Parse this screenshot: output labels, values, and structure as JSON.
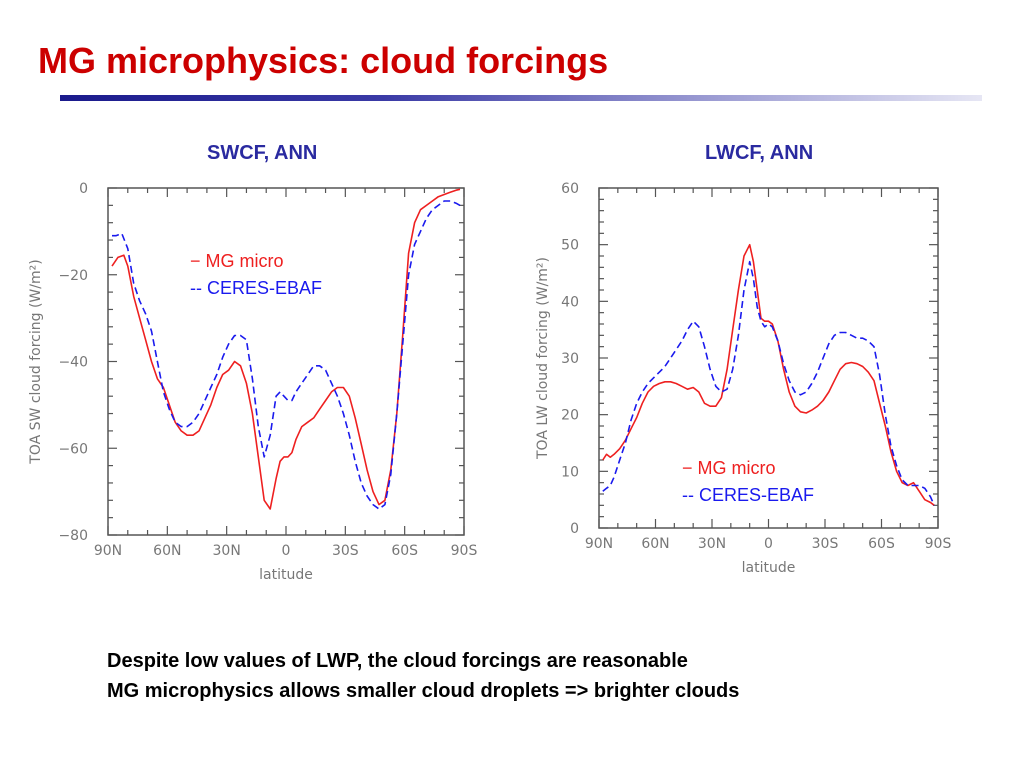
{
  "slide": {
    "title": "MG microphysics: cloud forcings",
    "notes": [
      "Despite low values of LWP, the cloud forcings are reasonable",
      "MG microphysics allows smaller cloud droplets => brighter clouds"
    ]
  },
  "colors": {
    "title": "#cc0000",
    "chart_title": "#2a2aa0",
    "mg": "#ee2020",
    "ceres": "#1a1aee",
    "axis": "#777777"
  },
  "chart_data": [
    {
      "type": "line",
      "title": "SWCF, ANN",
      "xlabel": "latitude",
      "ylabel": "TOA SW cloud forcing (W/m²)",
      "x_ticks": [
        90,
        60,
        30,
        0,
        -30,
        -60,
        -90
      ],
      "x_tick_labels": [
        "90N",
        "60N",
        "30N",
        "0",
        "30S",
        "60S",
        "90S"
      ],
      "xlim": [
        90,
        -90
      ],
      "y_ticks": [
        0,
        -20,
        -40,
        -60,
        -80
      ],
      "y_tick_labels": [
        "0",
        "−20",
        "−40",
        "−60",
        "−80"
      ],
      "ylim": [
        -80,
        0
      ],
      "legend": [
        "− MG micro",
        "-- CERES-EBAF"
      ],
      "series": [
        {
          "name": "MG micro",
          "style": "solid",
          "x": [
            88,
            85,
            82,
            80,
            77,
            74,
            71,
            68,
            65,
            62,
            59,
            56,
            53,
            50,
            47,
            44,
            41,
            38,
            35,
            32,
            29,
            26,
            23,
            20,
            17,
            14,
            11,
            8,
            5,
            3,
            1,
            -1,
            -3,
            -5,
            -8,
            -11,
            -14,
            -17,
            -20,
            -23,
            -26,
            -29,
            -32,
            -35,
            -38,
            -41,
            -44,
            -47,
            -50,
            -53,
            -56,
            -59,
            -62,
            -65,
            -68,
            -71,
            -74,
            -77,
            -80,
            -83,
            -86,
            -88
          ],
          "y": [
            -18,
            -16,
            -15.5,
            -18,
            -25,
            -30,
            -35,
            -40,
            -44,
            -46,
            -50,
            -54,
            -56,
            -57,
            -57,
            -56,
            -53,
            -50,
            -46,
            -43,
            -42,
            -40,
            -41,
            -45,
            -52,
            -62,
            -72,
            -74,
            -67,
            -63,
            -62,
            -62,
            -61,
            -58,
            -55,
            -54,
            -53,
            -51,
            -49,
            -47,
            -46,
            -46,
            -48,
            -53,
            -59,
            -65,
            -70,
            -73,
            -72,
            -65,
            -52,
            -34,
            -15,
            -8,
            -5,
            -4,
            -3,
            -2,
            -1.5,
            -1,
            -0.5,
            -0.3
          ]
        },
        {
          "name": "CERES-EBAF",
          "style": "dashed",
          "x": [
            88,
            86,
            83,
            80,
            77,
            74,
            71,
            68,
            65,
            62,
            59,
            56,
            53,
            50,
            47,
            44,
            41,
            38,
            35,
            32,
            29,
            26,
            23,
            20,
            17,
            14,
            11,
            8,
            5,
            3,
            1,
            -1,
            -3,
            -5,
            -8,
            -11,
            -14,
            -17,
            -20,
            -23,
            -26,
            -29,
            -32,
            -35,
            -38,
            -41,
            -44,
            -47,
            -50,
            -53,
            -56,
            -59,
            -62,
            -65,
            -68,
            -71,
            -74,
            -77,
            -80,
            -83,
            -86,
            -88
          ],
          "y": [
            -11,
            -11,
            -10.5,
            -14,
            -22,
            -26,
            -29,
            -33,
            -40,
            -47,
            -51,
            -54,
            -55,
            -55,
            -54,
            -52,
            -49,
            -46,
            -43,
            -39,
            -36,
            -34,
            -34,
            -35,
            -44,
            -55,
            -62,
            -57,
            -48,
            -47,
            -48,
            -49,
            -49,
            -47,
            -45,
            -43,
            -41,
            -41,
            -42,
            -45,
            -48,
            -52,
            -57,
            -63,
            -68,
            -71,
            -73,
            -74,
            -73,
            -66,
            -52,
            -36,
            -20,
            -13,
            -10,
            -7,
            -5,
            -4,
            -3,
            -3,
            -3.5,
            -4
          ]
        }
      ]
    },
    {
      "type": "line",
      "title": "LWCF, ANN",
      "xlabel": "latitude",
      "ylabel": "TOA LW cloud forcing (W/m²)",
      "x_ticks": [
        90,
        60,
        30,
        0,
        -30,
        -60,
        -90
      ],
      "x_tick_labels": [
        "90N",
        "60N",
        "30N",
        "0",
        "30S",
        "60S",
        "90S"
      ],
      "xlim": [
        90,
        -90
      ],
      "y_ticks": [
        60,
        50,
        40,
        30,
        20,
        10,
        0
      ],
      "y_tick_labels": [
        "60",
        "50",
        "40",
        "30",
        "20",
        "10",
        "0"
      ],
      "ylim": [
        0,
        60
      ],
      "legend": [
        "− MG micro",
        "-- CERES-EBAF"
      ],
      "series": [
        {
          "name": "MG micro",
          "style": "solid",
          "x": [
            88,
            86,
            84,
            82,
            79,
            76,
            73,
            70,
            67,
            64,
            61,
            58,
            55,
            52,
            49,
            46,
            43,
            40,
            37,
            34,
            31,
            28,
            25,
            22,
            19,
            16,
            13,
            10,
            8,
            6,
            4,
            2,
            0,
            -2,
            -5,
            -8,
            -11,
            -14,
            -17,
            -20,
            -23,
            -26,
            -29,
            -32,
            -35,
            -38,
            -41,
            -44,
            -47,
            -50,
            -53,
            -56,
            -59,
            -62,
            -65,
            -68,
            -71,
            -74,
            -77,
            -80,
            -83,
            -86,
            -88
          ],
          "y": [
            12,
            13,
            12.5,
            13,
            14,
            15.5,
            17.5,
            19.5,
            22,
            24,
            25,
            25.5,
            25.8,
            25.8,
            25.5,
            25,
            24.5,
            24.8,
            24,
            22,
            21.5,
            21.5,
            23,
            28,
            35,
            42,
            48,
            50,
            47,
            42,
            37,
            36.5,
            36.5,
            36,
            33,
            28,
            24,
            21.5,
            20.5,
            20.3,
            20.8,
            21.5,
            22.5,
            24,
            26,
            28,
            29,
            29.2,
            29,
            28.5,
            27.5,
            26,
            22,
            18,
            13.5,
            10,
            8,
            7.5,
            8,
            6.5,
            5,
            4.5,
            4
          ]
        },
        {
          "name": "CERES-EBAF",
          "style": "dashed",
          "x": [
            88,
            86,
            84,
            82,
            79,
            76,
            73,
            70,
            67,
            64,
            61,
            58,
            55,
            52,
            49,
            46,
            43,
            40,
            37,
            34,
            31,
            28,
            25,
            22,
            19,
            16,
            13,
            10,
            8,
            6,
            4,
            2,
            0,
            -2,
            -5,
            -8,
            -11,
            -14,
            -17,
            -20,
            -23,
            -26,
            -29,
            -32,
            -35,
            -38,
            -41,
            -44,
            -47,
            -50,
            -53,
            -56,
            -59,
            -62,
            -65,
            -68,
            -71,
            -74,
            -77,
            -80,
            -83,
            -86,
            -88
          ],
          "y": [
            6.5,
            7,
            7.5,
            9,
            12,
            15,
            19,
            22,
            24,
            25.5,
            26.5,
            27.5,
            28.5,
            30,
            31.5,
            33,
            35,
            36.5,
            35.5,
            32,
            28,
            25,
            24,
            24.5,
            28,
            34,
            42,
            47,
            44,
            39,
            36.5,
            35.5,
            36,
            35.5,
            33,
            29,
            26,
            24,
            23.5,
            24,
            25.5,
            27.5,
            30,
            32.5,
            34,
            34.5,
            34.5,
            34,
            33.5,
            33.5,
            33,
            32,
            27,
            20,
            14.5,
            11,
            8.5,
            7.5,
            7.5,
            7.5,
            7,
            5.5,
            4
          ]
        }
      ]
    }
  ]
}
